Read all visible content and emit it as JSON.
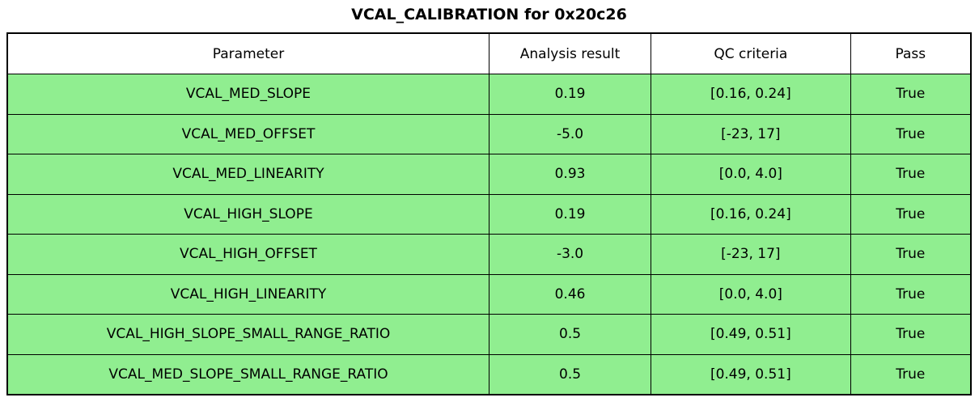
{
  "chart_data": {
    "type": "table",
    "title": "VCAL_CALIBRATION for 0x20c26",
    "columns": [
      "Parameter",
      "Analysis result",
      "QC criteria",
      "Pass"
    ],
    "rows": [
      [
        "VCAL_MED_SLOPE",
        "0.19",
        "[0.16, 0.24]",
        "True"
      ],
      [
        "VCAL_MED_OFFSET",
        "-5.0",
        "[-23, 17]",
        "True"
      ],
      [
        "VCAL_MED_LINEARITY",
        "0.93",
        "[0.0, 4.0]",
        "True"
      ],
      [
        "VCAL_HIGH_SLOPE",
        "0.19",
        "[0.16, 0.24]",
        "True"
      ],
      [
        "VCAL_HIGH_OFFSET",
        "-3.0",
        "[-23, 17]",
        "True"
      ],
      [
        "VCAL_HIGH_LINEARITY",
        "0.46",
        "[0.0, 4.0]",
        "True"
      ],
      [
        "VCAL_HIGH_SLOPE_SMALL_RANGE_RATIO",
        "0.5",
        "[0.49, 0.51]",
        "True"
      ],
      [
        "VCAL_MED_SLOPE_SMALL_RANGE_RATIO",
        "0.5",
        "[0.49, 0.51]",
        "True"
      ]
    ],
    "colors": {
      "pass_row_bg": "#90ee90",
      "header_bg": "#ffffff",
      "border": "#000000",
      "text": "#000000"
    },
    "layout_hints": {
      "grid": "all-cell-borders",
      "header_position": "top",
      "all_cells_centered": true
    }
  }
}
